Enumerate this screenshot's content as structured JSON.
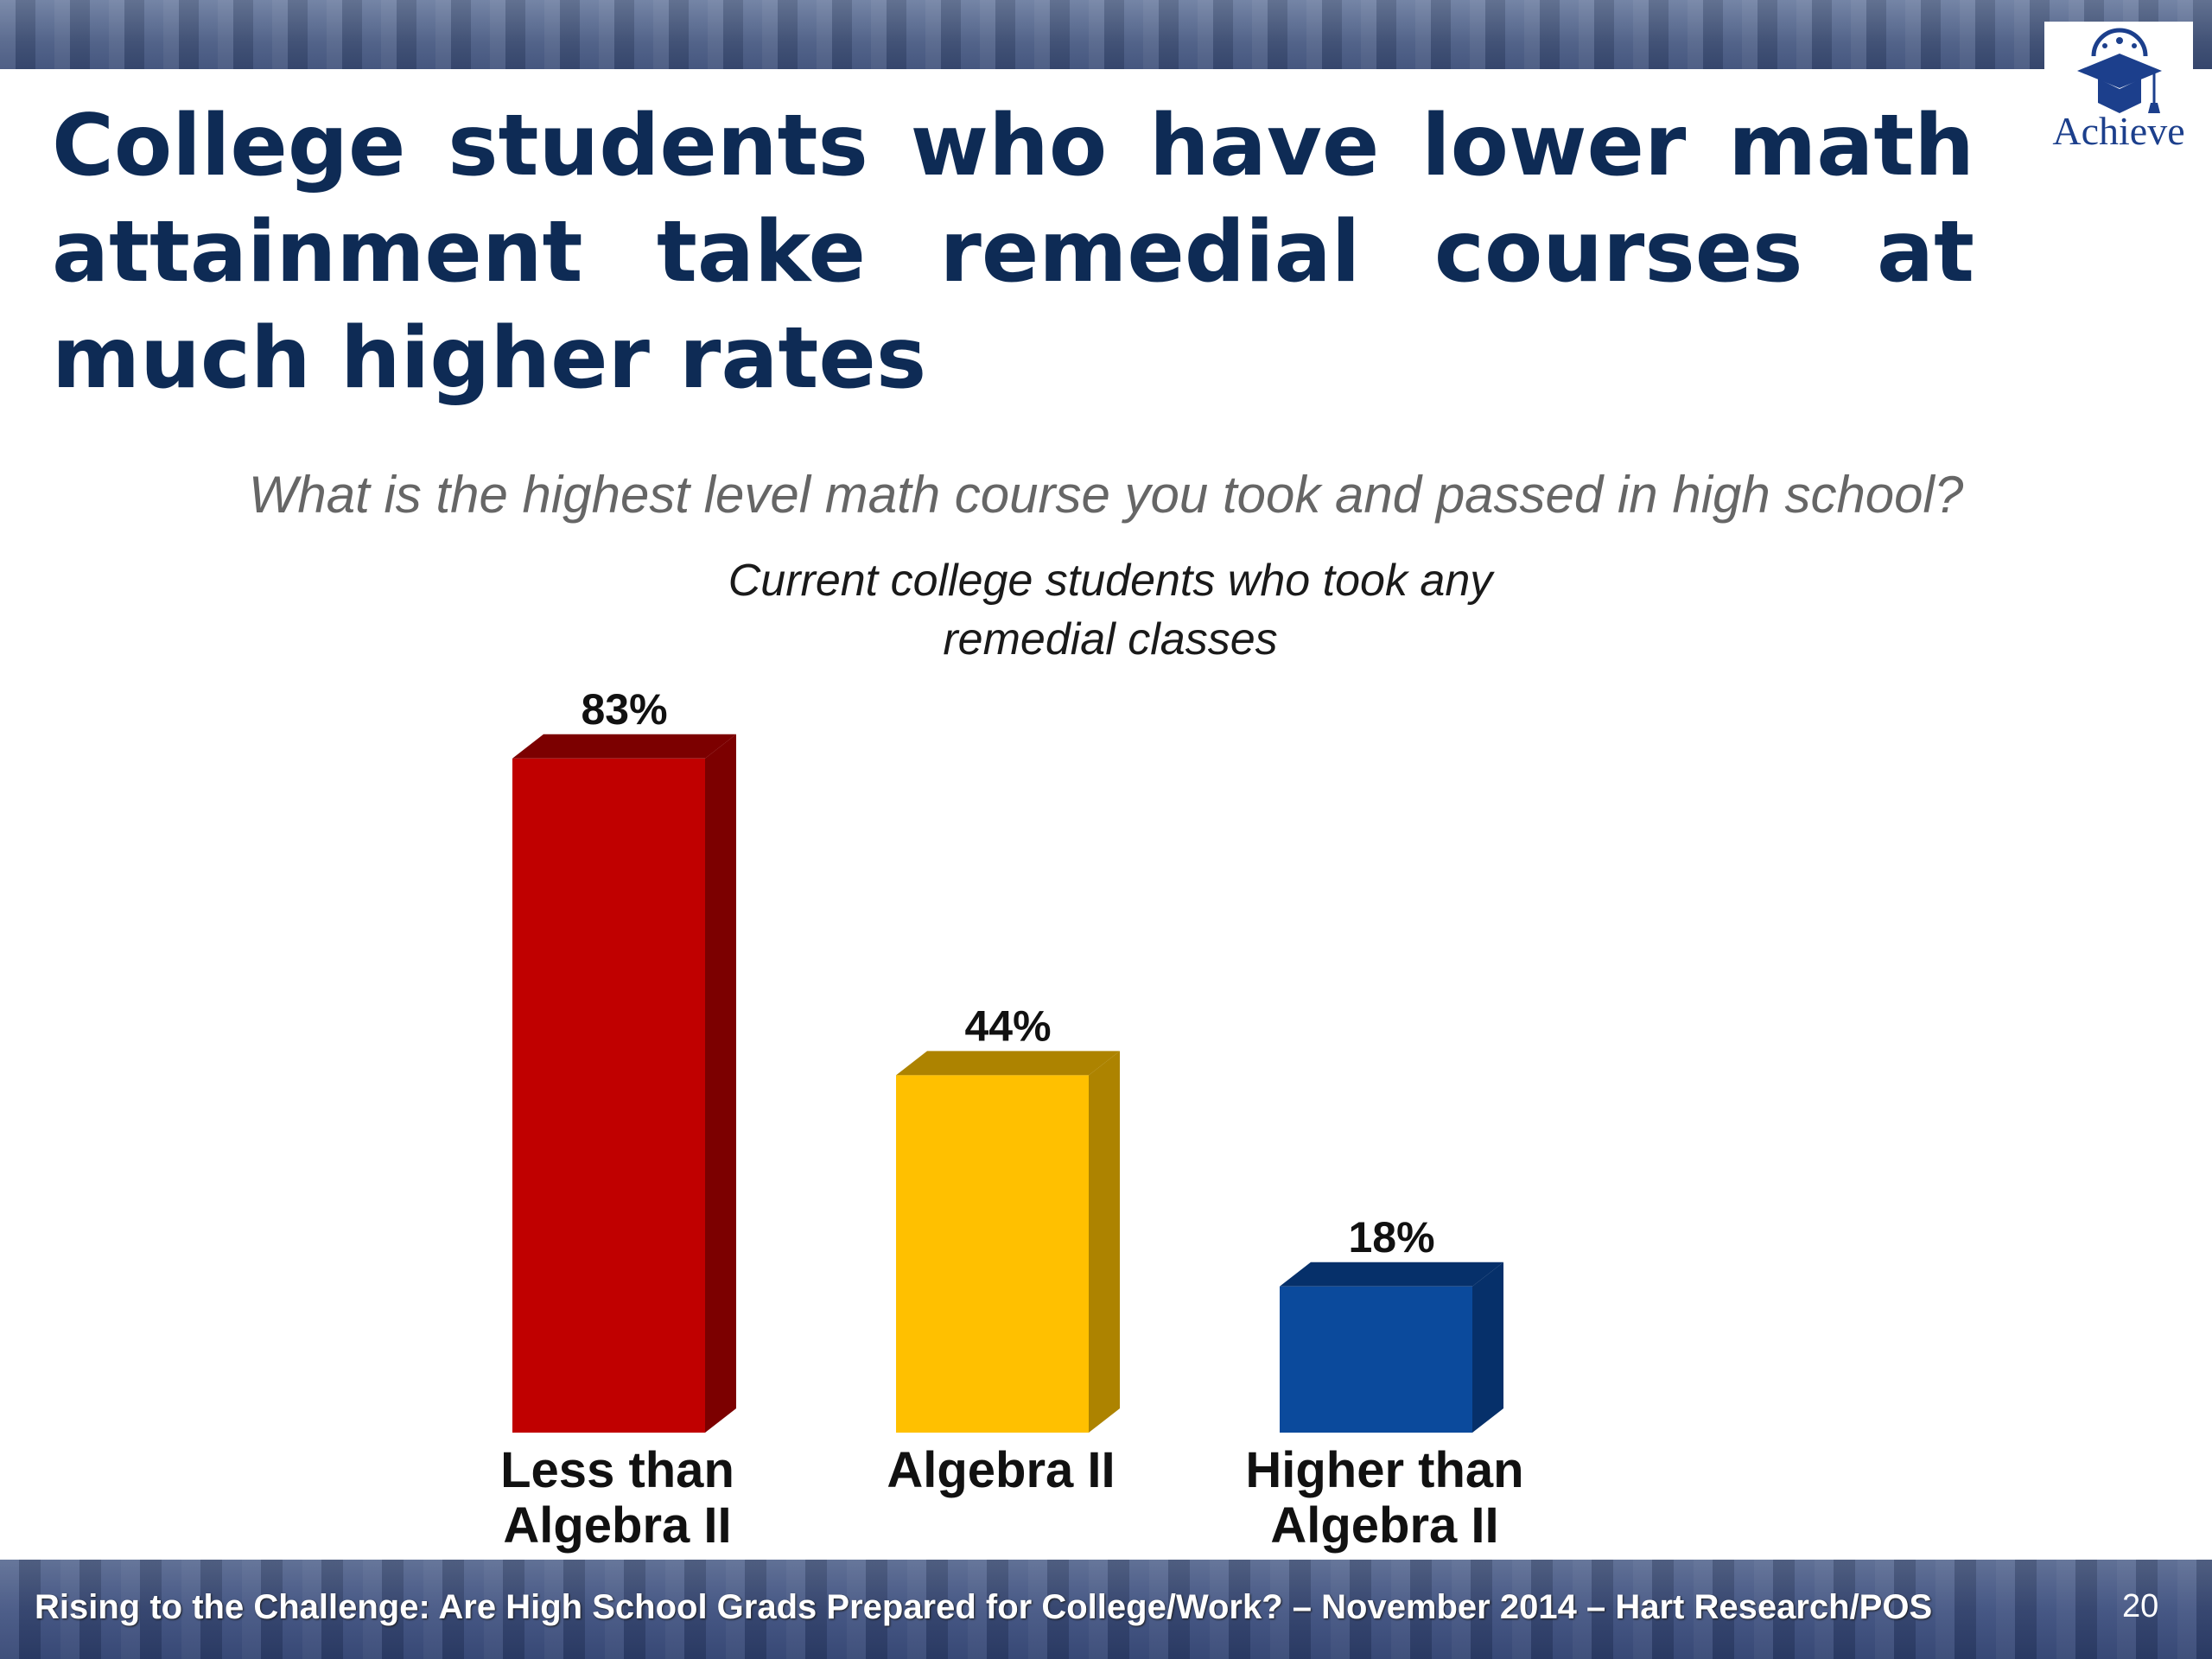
{
  "slide": {
    "title": "College students who have lower math attainment take remedial courses at much higher rates",
    "question": "What is the highest level math course you took and passed in high school?",
    "logo_text": "Achieve",
    "footer": "Rising to the Challenge:  Are High School Grads Prepared for College/Work? – November 2014 – Hart Research/POS",
    "page_number": "20"
  },
  "chart_data": {
    "type": "bar",
    "title": "Current college students who took any remedial classes",
    "categories": [
      "Less than Algebra II",
      "Algebra II",
      "Higher than Algebra II"
    ],
    "category_lines": [
      [
        "Less than",
        "Algebra II"
      ],
      [
        "Algebra II"
      ],
      [
        "Higher than",
        "Algebra II"
      ]
    ],
    "values": [
      83,
      44,
      18
    ],
    "value_labels": [
      "83%",
      "44%",
      "18%"
    ],
    "colors": [
      "#c00000",
      "#ffc000",
      "#0b4a9c"
    ],
    "side_colors": [
      "#7c0000",
      "#ad8300",
      "#06306a"
    ],
    "ylim": [
      0,
      100
    ],
    "grid": false,
    "legend": "none"
  }
}
